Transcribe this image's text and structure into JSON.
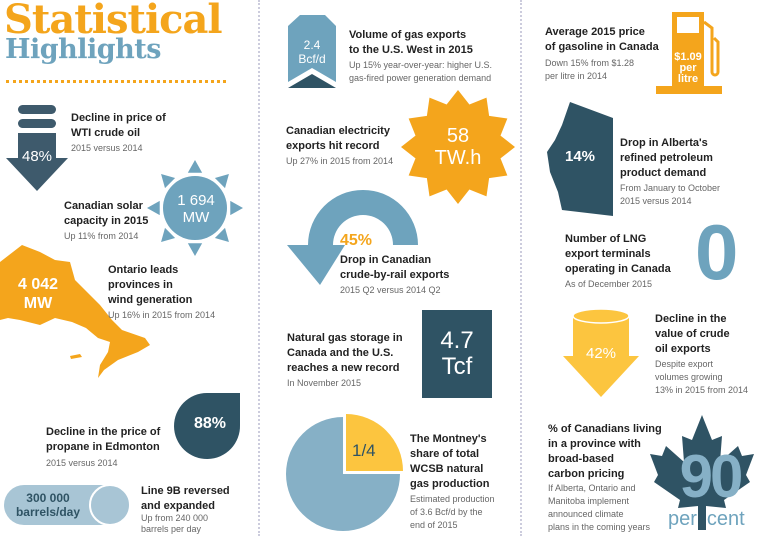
{
  "title": {
    "line1": "Statistical",
    "line2": "Highlights"
  },
  "colors": {
    "orange": "#f4a51c",
    "blue": "#6ea3bd",
    "dark": "#2f5364",
    "yellow": "#fcc53f",
    "light_blue": "#a8c5d5"
  },
  "items": {
    "wti": {
      "value": "48%",
      "title1": "Decline in price of",
      "title2": "WTI crude oil",
      "sub": "2015 versus 2014",
      "icon": "down-arrow-barrel"
    },
    "solar": {
      "value1": "1 694",
      "value2": "MW",
      "title1": "Canadian solar",
      "title2": "capacity in 2015",
      "sub": "Up 11% from 2014",
      "icon": "sun"
    },
    "wind": {
      "value1": "4 042",
      "value2": "MW",
      "title1": "Ontario leads",
      "title2": "provinces in",
      "title3": "wind generation",
      "sub": "Up 16% in 2015 from 2014",
      "icon": "ontario-map"
    },
    "propane": {
      "value": "88%",
      "title1": "Decline in the price of",
      "title2": "propane in Edmonton",
      "sub": "2015 versus 2014",
      "icon": "drop"
    },
    "line9b": {
      "value1": "300 000",
      "value2": "barrels/day",
      "title1": "Line 9B reversed",
      "title2": "and expanded",
      "sub1": "Up from 240 000",
      "sub2": "barrels per day",
      "icon": "pipe"
    },
    "gas_west": {
      "value1": "2.4",
      "value2": "Bcf/d",
      "title1": "Volume of gas exports",
      "title2": "to the U.S. West in 2015",
      "sub1": "Up 15% year-over-year: higher U.S.",
      "sub2": "gas-fired power generation demand",
      "icon": "chevron-up"
    },
    "electricity": {
      "value1": "58",
      "value2": "TW.h",
      "title1": "Canadian electricity",
      "title2": "exports hit record",
      "sub": "Up 27% in 2015 from 2014",
      "icon": "starburst"
    },
    "rail": {
      "value": "45%",
      "title1": "Drop in Canadian",
      "title2": "crude-by-rail exports",
      "sub": "2015 Q2 versus 2014 Q2",
      "icon": "u-turn-arrow"
    },
    "storage": {
      "value1": "4.7",
      "value2": "Tcf",
      "title1": "Natural gas storage in",
      "title2": "Canada and the U.S.",
      "title3": "reaches a new record",
      "sub": "In November 2015",
      "icon": "square"
    },
    "montney": {
      "value": "1/4",
      "share": 0.25,
      "title1": "The Montney's",
      "title2": "share of total",
      "title3": "WCSB natural",
      "title4": "gas production",
      "sub1": "Estimated production",
      "sub2": "of 3.6 Bcf/d by the",
      "sub3": "end of 2015",
      "icon": "pie"
    },
    "gasoline": {
      "value1": "$1.09",
      "value2": "per",
      "value3": "litre",
      "title1": "Average 2015 price",
      "title2": "of gasoline in Canada",
      "sub1": "Down 15% from $1.28",
      "sub2": "per litre in 2014",
      "icon": "gas-pump"
    },
    "alberta": {
      "value": "14%",
      "title1": "Drop in Alberta's",
      "title2": "refined petroleum",
      "title3": "product demand",
      "sub1": "From January to October",
      "sub2": "2015 versus 2014",
      "icon": "alberta-map"
    },
    "lng": {
      "value": "0",
      "title1": "Number of LNG",
      "title2": "export terminals",
      "title3": "operating in Canada",
      "sub": "As of December 2015"
    },
    "crude_exports": {
      "value": "42%",
      "title1": "Decline in the",
      "title2": "value of crude",
      "title3": "oil exports",
      "sub1": "Despite export",
      "sub2": "volumes growing",
      "sub3": "13% in 2015 from 2014",
      "icon": "down-arrow-barrel"
    },
    "carbon": {
      "value1": "90",
      "value2": "per",
      "value3": "cent",
      "title1": "% of Canadians living",
      "title2": "in a province with",
      "title3": "broad-based",
      "title4": "carbon pricing",
      "sub1": "If Alberta, Ontario and",
      "sub2": "Manitoba implement",
      "sub3": "announced climate",
      "sub4": "plans in the coming years",
      "icon": "maple-leaf"
    }
  }
}
